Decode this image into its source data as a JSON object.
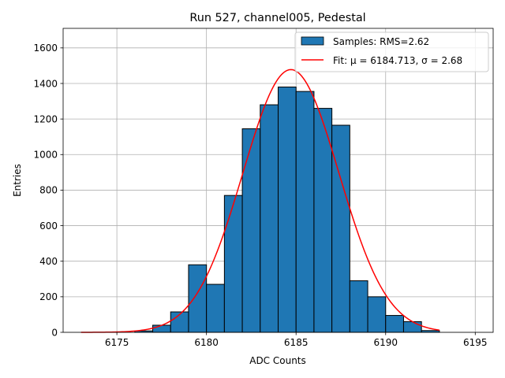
{
  "chart_data": {
    "type": "bar",
    "title": "Run 527, channel005, Pedestal",
    "xlabel": "ADC Counts",
    "ylabel": "Entries",
    "xlim": [
      6172.0,
      6196.0
    ],
    "ylim": [
      0,
      1710
    ],
    "xticks": [
      6175,
      6180,
      6185,
      6190,
      6195
    ],
    "yticks": [
      0,
      200,
      400,
      600,
      800,
      1000,
      1200,
      1400,
      1600
    ],
    "grid": true,
    "legend_position": "top-right",
    "histogram": {
      "name": "Samples: RMS=2.62",
      "bin_width": 1,
      "bin_edges": [
        6176,
        6177,
        6178,
        6179,
        6180,
        6181,
        6182,
        6183,
        6184,
        6185,
        6186,
        6187,
        6188,
        6189,
        6190,
        6191,
        6192,
        6193
      ],
      "counts": [
        8,
        40,
        115,
        380,
        270,
        770,
        1145,
        1280,
        1380,
        1355,
        1260,
        1165,
        290,
        200,
        95,
        60,
        10
      ],
      "color": "#1f77b4",
      "edgecolor": "#000000"
    },
    "fit": {
      "name_prefix": "Fit: ",
      "mu_label": "μ = 6184.713",
      "separator": ", ",
      "sigma_label": "σ = 2.68",
      "mu": 6184.713,
      "sigma": 2.68,
      "amplitude": 1478,
      "x_range": [
        6173,
        6193
      ],
      "color": "#ff0000"
    }
  }
}
